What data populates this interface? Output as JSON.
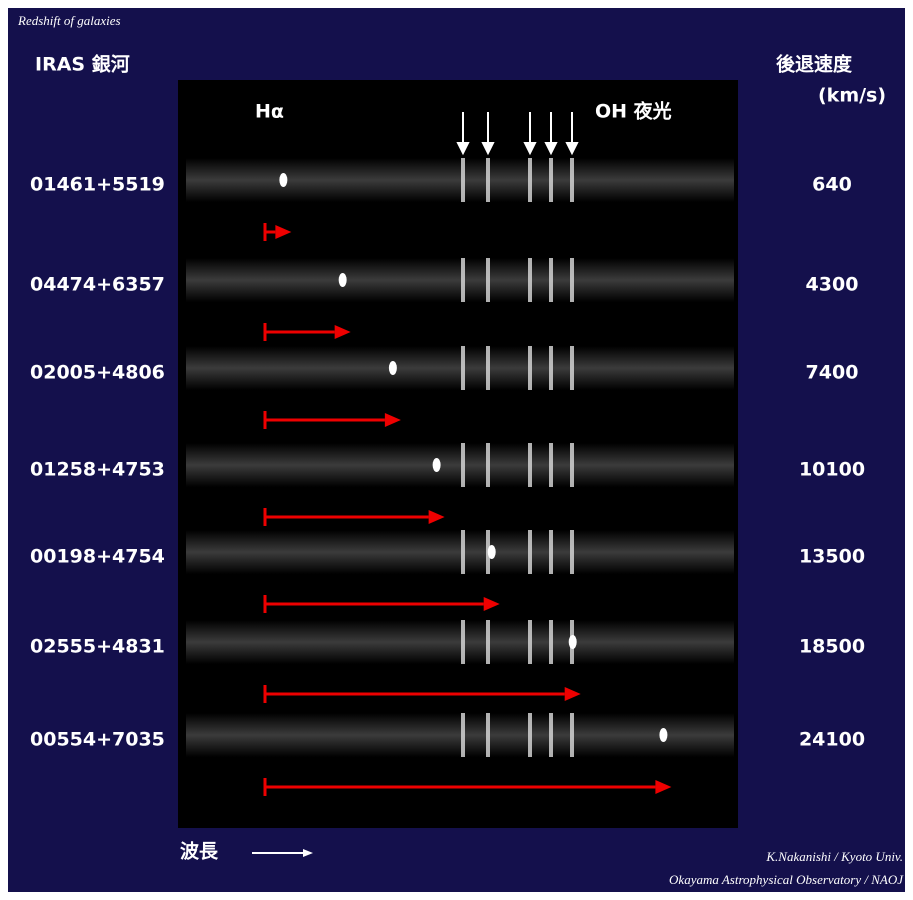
{
  "header": {
    "title": "Redshift of galaxies",
    "left_heading": "IRAS 銀河",
    "right_heading": "後退速度",
    "right_unit": "(km/s)"
  },
  "labels": {
    "halpha": "Hα",
    "oh": "OH 夜光"
  },
  "rows": [
    {
      "name": "01461+5519",
      "velocity": 640
    },
    {
      "name": "04474+6357",
      "velocity": 4300
    },
    {
      "name": "02005+4806",
      "velocity": 7400
    },
    {
      "name": "01258+4753",
      "velocity": 10100
    },
    {
      "name": "00198+4754",
      "velocity": 13500
    },
    {
      "name": "02555+4831",
      "velocity": 18500
    },
    {
      "name": "00554+7035",
      "velocity": 24100
    }
  ],
  "footer": {
    "wavelength": "波長",
    "credit_1": "K.Nakanishi / Kyoto Univ.",
    "credit_2": "Okayama Astrophysical Observatory / NAOJ"
  }
}
